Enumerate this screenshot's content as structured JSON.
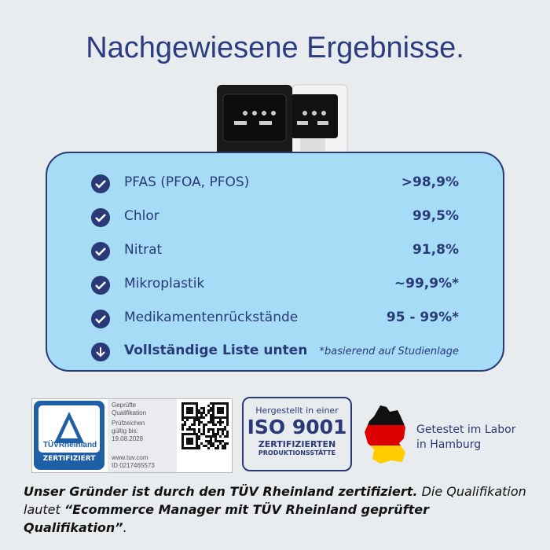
{
  "title": "Nachgewiesene Ergebnisse.",
  "results": [
    {
      "label": "PFAS (PFOA, PFOS)",
      "value": ">98,9%"
    },
    {
      "label": "Chlor",
      "value": "99,5%"
    },
    {
      "label": "Nitrat",
      "value": "91,8%"
    },
    {
      "label": "Mikroplastik",
      "value": "~99,9%*"
    },
    {
      "label": "Medikamentenrückstände",
      "value": "95 - 99%*"
    }
  ],
  "full_list": {
    "label": "Vollständige Liste unten",
    "note": "*basierend auf Studienlage"
  },
  "tuv": {
    "brand": "TÜVRheinland",
    "badge": "ZERTIFIZIERT",
    "qualification": [
      "Geprüfte",
      "Qualifikation"
    ],
    "validity": [
      "Prüfzeichen",
      "gültig bis:",
      "19.08.2028"
    ],
    "url": "www.tuv.com",
    "id": "ID  0217465573"
  },
  "iso": {
    "line1": "Hergestellt in einer",
    "line2": "ISO 9001",
    "line3": "ZERTIFIZIERTEN",
    "line4": "PRODUKTIONSSTÄTTE"
  },
  "germany": {
    "lines": [
      "Getestet im Labor",
      "in Hamburg"
    ]
  },
  "footer": {
    "bold": "Unser Gründer ist durch den TÜV Rheinland zertifiziert.",
    "text": " Die Qualifikation lautet ",
    "quote": "“Ecommerce Manager mit TÜV Rheinland geprüfter Qualifikation”",
    "end": "."
  }
}
